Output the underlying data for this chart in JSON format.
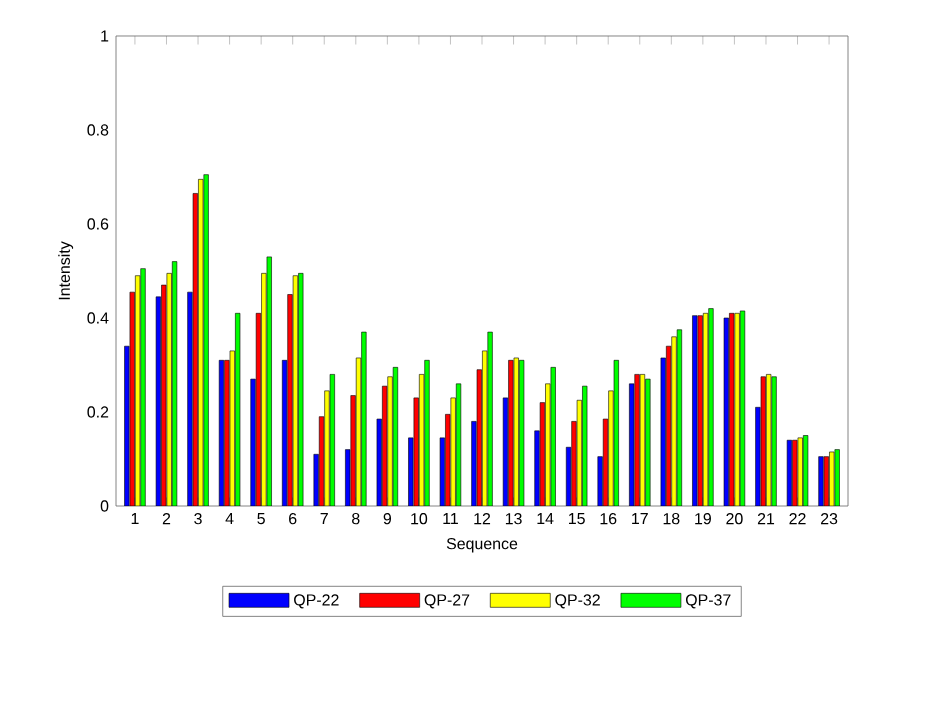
{
  "chart_data": {
    "type": "bar",
    "xlabel": "Sequence",
    "ylabel": "Intensity",
    "categories": [
      "1",
      "2",
      "3",
      "4",
      "5",
      "6",
      "7",
      "8",
      "9",
      "10",
      "11",
      "12",
      "13",
      "14",
      "15",
      "16",
      "17",
      "18",
      "19",
      "20",
      "21",
      "22",
      "23"
    ],
    "series": [
      {
        "name": "QP-22",
        "color": "#0000ff",
        "values": [
          0.34,
          0.445,
          0.455,
          0.31,
          0.27,
          0.31,
          0.11,
          0.12,
          0.185,
          0.145,
          0.145,
          0.18,
          0.23,
          0.16,
          0.125,
          0.105,
          0.26,
          0.315,
          0.405,
          0.4,
          0.21,
          0.14,
          0.105
        ]
      },
      {
        "name": "QP-27",
        "color": "#ff0000",
        "values": [
          0.455,
          0.47,
          0.665,
          0.31,
          0.41,
          0.45,
          0.19,
          0.235,
          0.255,
          0.23,
          0.195,
          0.29,
          0.31,
          0.22,
          0.18,
          0.185,
          0.28,
          0.34,
          0.405,
          0.41,
          0.275,
          0.14,
          0.105
        ]
      },
      {
        "name": "QP-32",
        "color": "#ffff00",
        "values": [
          0.49,
          0.495,
          0.695,
          0.33,
          0.495,
          0.49,
          0.245,
          0.315,
          0.275,
          0.28,
          0.23,
          0.33,
          0.315,
          0.26,
          0.225,
          0.245,
          0.28,
          0.36,
          0.41,
          0.41,
          0.28,
          0.145,
          0.115
        ]
      },
      {
        "name": "QP-37",
        "color": "#00ff00",
        "values": [
          0.505,
          0.52,
          0.705,
          0.41,
          0.53,
          0.495,
          0.28,
          0.37,
          0.295,
          0.31,
          0.26,
          0.37,
          0.31,
          0.295,
          0.255,
          0.31,
          0.27,
          0.375,
          0.42,
          0.415,
          0.275,
          0.15,
          0.12
        ]
      }
    ],
    "ylim": [
      0,
      1
    ],
    "yticks": [
      0,
      0.2,
      0.4,
      0.6,
      0.8,
      1
    ],
    "legend": "bottom",
    "grid": false
  }
}
